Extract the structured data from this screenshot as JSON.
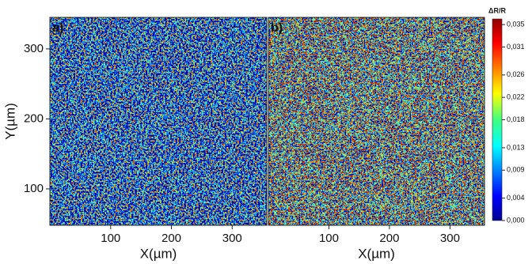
{
  "chart_data": [
    {
      "type": "heatmap",
      "label": "a)",
      "xlabel": "X(µm)",
      "ylabel": "Y(µm)",
      "xlim": [
        0,
        357
      ],
      "ylim": [
        48,
        345
      ],
      "xticks": [
        100,
        200,
        300
      ],
      "yticks": [
        100,
        200,
        300
      ]
    },
    {
      "type": "heatmap",
      "label": "b)",
      "xlabel": "X(µm)",
      "xlim": [
        0,
        357
      ],
      "xticks": [
        100,
        200,
        300
      ],
      "colorbar": {
        "title": "ΔR/R",
        "lim": [
          0,
          0.036
        ],
        "ticks": [
          {
            "value": 0,
            "label": "0,000"
          },
          {
            "value": 0.004,
            "label": "0,004"
          },
          {
            "value": 0.009,
            "label": "0,009"
          },
          {
            "value": 0.013,
            "label": "0,013"
          },
          {
            "value": 0.018,
            "label": "0,018"
          },
          {
            "value": 0.022,
            "label": "0,022"
          },
          {
            "value": 0.026,
            "label": "0,026"
          },
          {
            "value": 0.031,
            "label": "0,031"
          },
          {
            "value": 0.035,
            "label": "0,035"
          }
        ]
      }
    }
  ]
}
